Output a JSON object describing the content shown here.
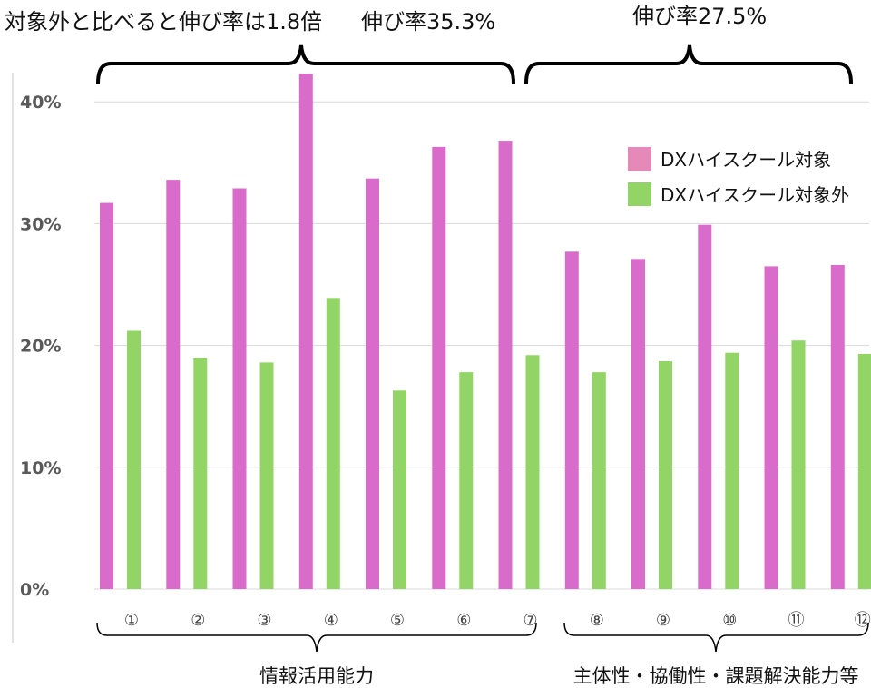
{
  "annotations": {
    "left": "対象外と比べると伸び率は1.8倍",
    "left_rate": "伸び率35.3%",
    "right_rate": "伸び率27.5%"
  },
  "groups": [
    {
      "label": "情報活用能力"
    },
    {
      "label": "主体性・協働性・課題解決能力等"
    }
  ],
  "colors": {
    "target": "#d96ccb",
    "non_target": "#92d465",
    "grid": "#d9d9d9"
  },
  "chart_data": {
    "type": "bar",
    "categories": [
      "①",
      "②",
      "③",
      "④",
      "⑤",
      "⑥",
      "⑦",
      "⑧",
      "⑨",
      "⑩",
      "⑪",
      "⑫"
    ],
    "series": [
      {
        "name": "DXハイスクール対象",
        "values": [
          31.7,
          33.6,
          32.9,
          42.3,
          33.7,
          36.3,
          36.8,
          27.7,
          27.1,
          29.9,
          26.5,
          26.6
        ]
      },
      {
        "name": "DXハイスクール対象外",
        "values": [
          21.2,
          19.0,
          18.6,
          23.9,
          16.3,
          17.8,
          19.2,
          17.8,
          18.7,
          19.4,
          20.4,
          19.3
        ]
      }
    ],
    "yticks": [
      "0%",
      "10%",
      "20%",
      "30%",
      "40%"
    ],
    "ylim": [
      0,
      43
    ],
    "grid": true,
    "legend": "top-right"
  }
}
